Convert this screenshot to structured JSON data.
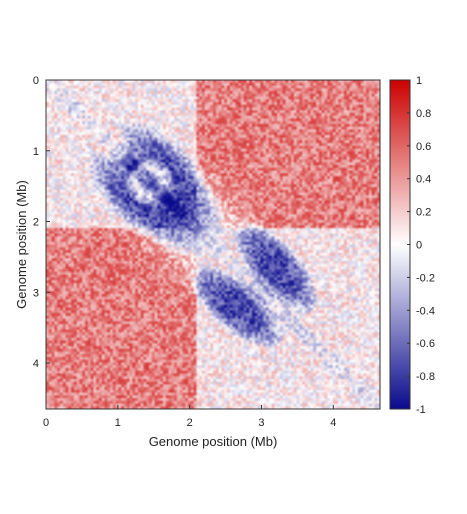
{
  "chart_data": {
    "type": "heatmap",
    "title": "",
    "xlabel": "Genome position (Mb)",
    "ylabel": "Genome position (Mb)",
    "xlim": [
      0,
      4.65
    ],
    "ylim": [
      0,
      4.65
    ],
    "y_inverted": true,
    "xticks": [
      0,
      1,
      2,
      3,
      4
    ],
    "yticks": [
      0,
      1,
      2,
      3,
      4
    ],
    "colorbar": {
      "range": [
        -1,
        1
      ],
      "ticks": [
        -1,
        -0.8,
        -0.6,
        -0.4,
        -0.2,
        0,
        0.2,
        0.4,
        0.6,
        0.8,
        1
      ],
      "tick_labels": [
        "-1",
        "-0.8",
        "-0.6",
        "-0.4",
        "-0.2",
        "0",
        "0.2",
        "0.4",
        "0.6",
        "0.8",
        "1"
      ],
      "colormap": "blue-white-red",
      "low_color": "#0a0a8c",
      "mid_color": "#ffffff",
      "high_color": "#cc0000"
    },
    "grid": false,
    "description_features": {
      "symmetric": true,
      "features": [
        {
          "kind": "positive_block",
          "x_range": [
            0,
            2.1
          ],
          "y_range": [
            2.1,
            4.65
          ],
          "value": 0.45
        },
        {
          "kind": "positive_block",
          "x_range": [
            2.1,
            4.65
          ],
          "y_range": [
            0,
            2.1
          ],
          "value": 0.45
        },
        {
          "kind": "negative_ellipse",
          "center": [
            1.4,
            1.75
          ],
          "semi_axes": [
            0.75,
            0.28
          ],
          "angle_deg": 40,
          "value": -0.8
        },
        {
          "kind": "negative_ellipse",
          "center": [
            1.75,
            1.4
          ],
          "semi_axes": [
            0.75,
            0.28
          ],
          "angle_deg": 40,
          "value": -0.8
        },
        {
          "kind": "negative_ellipse",
          "center": [
            2.65,
            3.2
          ],
          "semi_axes": [
            0.6,
            0.25
          ],
          "angle_deg": 40,
          "value": -0.8
        },
        {
          "kind": "negative_ellipse",
          "center": [
            3.2,
            2.65
          ],
          "semi_axes": [
            0.6,
            0.25
          ],
          "angle_deg": 40,
          "value": -0.8
        },
        {
          "kind": "positive_spot",
          "center": [
            1.45,
            1.45
          ],
          "radius": 0.25,
          "value": 0.7
        }
      ]
    }
  }
}
